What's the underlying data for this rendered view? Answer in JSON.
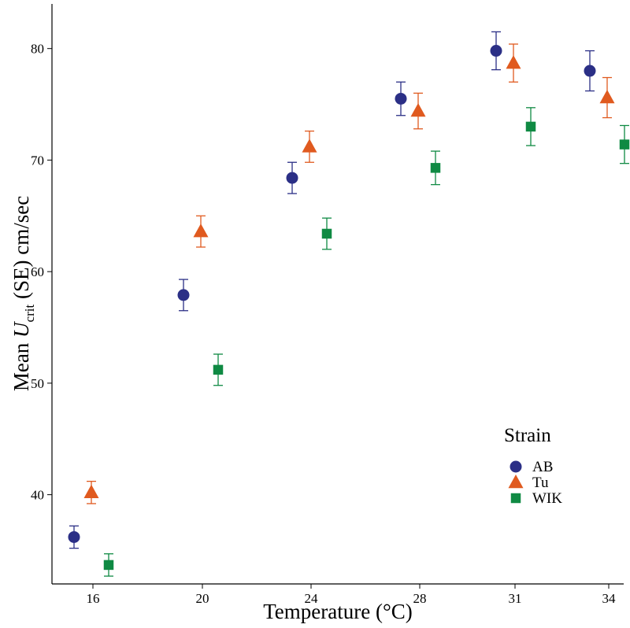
{
  "chart_data": {
    "type": "scatter",
    "title": "",
    "xlabel": "Temperature (°C)",
    "ylabel_main": "Mean ",
    "ylabel_symbol": "U",
    "ylabel_subscript": "crit",
    "ylabel_tail": " (SE) cm/sec",
    "categories": [
      "16",
      "20",
      "24",
      "28",
      "31",
      "34"
    ],
    "ylim": [
      32,
      84
    ],
    "yticks": [
      40,
      50,
      60,
      70,
      80
    ],
    "legend": {
      "title": "Strain",
      "position": "right"
    },
    "series": [
      {
        "name": "AB",
        "marker": "circle",
        "color": "#2b2f86",
        "values": [
          36.2,
          57.9,
          68.4,
          75.5,
          79.8,
          78.0
        ],
        "se": [
          1.0,
          1.4,
          1.4,
          1.5,
          1.7,
          1.8
        ]
      },
      {
        "name": "Tu",
        "marker": "triangle",
        "color": "#e05a1f",
        "values": [
          40.2,
          63.6,
          71.2,
          74.4,
          78.7,
          75.6
        ],
        "se": [
          1.0,
          1.4,
          1.4,
          1.6,
          1.7,
          1.8
        ]
      },
      {
        "name": "WIK",
        "marker": "square",
        "color": "#0f8a43",
        "values": [
          33.7,
          51.2,
          63.4,
          69.3,
          73.0,
          71.4
        ],
        "se": [
          1.0,
          1.4,
          1.4,
          1.5,
          1.7,
          1.7
        ]
      }
    ]
  }
}
